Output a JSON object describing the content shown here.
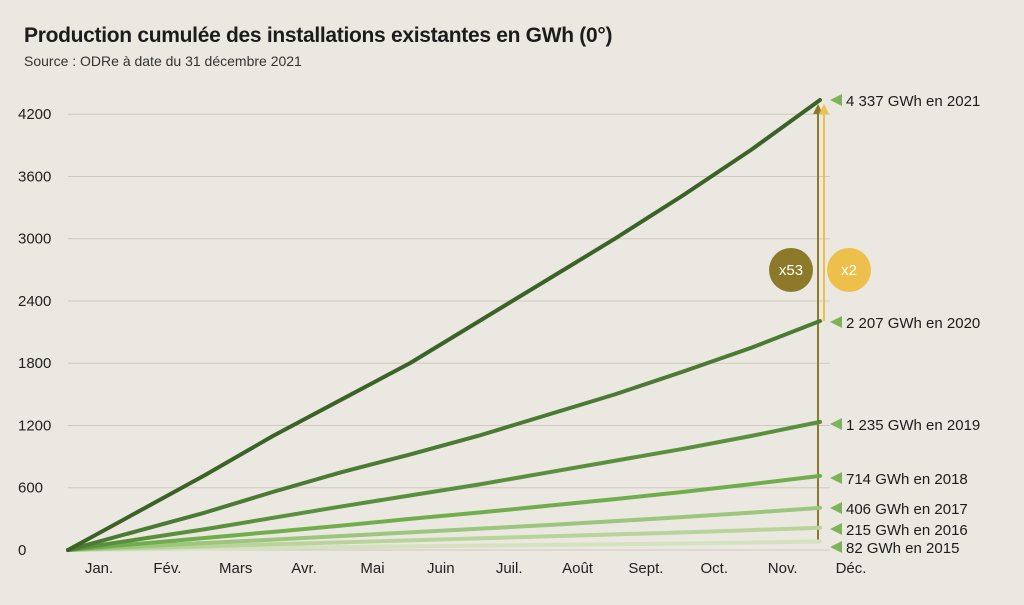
{
  "title": "Production cumulée des installations existantes en GWh (0°)",
  "subtitle": "Source : ODRe à date du 31 décembre 2021",
  "colors": {
    "background": "#ebe8e1",
    "grid": "#cfcac0",
    "multiplier_dark": "#8c7a2a",
    "multiplier_light": "#ecc04a",
    "arrow_marker": "#7fb35a"
  },
  "chart_data": {
    "type": "line",
    "categories": [
      "Jan.",
      "Fév.",
      "Mars",
      "Avr.",
      "Mai",
      "Juin",
      "Juil.",
      "Août",
      "Sept.",
      "Oct.",
      "Nov.",
      "Déc."
    ],
    "yticks": [
      0,
      600,
      1200,
      1800,
      2400,
      3000,
      3600,
      4200
    ],
    "ylim": [
      0,
      4337
    ],
    "grid": true,
    "series": [
      {
        "name": "82 GWh en 2015",
        "color": "#d4e2c0",
        "values": [
          0,
          7,
          14,
          21,
          28,
          35,
          42,
          49,
          56,
          63,
          72,
          82
        ]
      },
      {
        "name": "215 GWh en 2016",
        "color": "#b8d49a",
        "values": [
          0,
          18,
          36,
          55,
          74,
          93,
          112,
          131,
          150,
          170,
          192,
          215
        ]
      },
      {
        "name": "406 GWh en 2017",
        "color": "#9cc57d",
        "values": [
          0,
          33,
          67,
          100,
          135,
          170,
          205,
          240,
          278,
          318,
          360,
          406
        ]
      },
      {
        "name": "714 GWh en 2018",
        "color": "#72ad4d",
        "values": [
          0,
          58,
          116,
          175,
          235,
          300,
          360,
          425,
          490,
          560,
          635,
          714
        ]
      },
      {
        "name": "1 235 GWh en 2019",
        "color": "#5a8f3e",
        "values": [
          0,
          100,
          200,
          310,
          420,
          525,
          630,
          745,
          860,
          975,
          1100,
          1235
        ]
      },
      {
        "name": "2 207 GWh en 2020",
        "color": "#4a7a33",
        "values": [
          0,
          180,
          360,
          560,
          750,
          920,
          1100,
          1300,
          1500,
          1720,
          1950,
          2207
        ]
      },
      {
        "name": "4 337 GWh en 2021",
        "color": "#3b6328",
        "values": [
          0,
          360,
          720,
          1100,
          1450,
          1800,
          2200,
          2600,
          3000,
          3420,
          3860,
          4337
        ]
      }
    ],
    "annotations": [
      {
        "label": "x53",
        "color": "#8c7a2a",
        "from": 82,
        "to": 4337
      },
      {
        "label": "x2",
        "color": "#ecc04a",
        "from": 2207,
        "to": 4337
      }
    ]
  }
}
